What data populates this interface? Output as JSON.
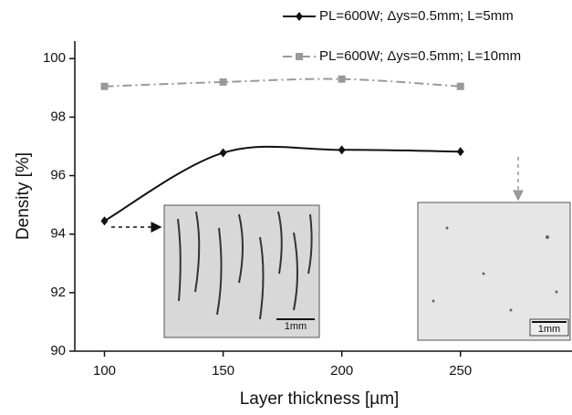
{
  "chart_data": {
    "type": "line",
    "x_label": "Layer thickness [µm]",
    "y_label": "Density [%]",
    "x": [
      100,
      150,
      200,
      250
    ],
    "series": [
      {
        "name": "PL=600W; Δys=0.5mm; L=5mm",
        "color": "#111111",
        "marker": "diamond",
        "dash": "solid",
        "values": [
          94.45,
          96.78,
          96.88,
          96.82
        ]
      },
      {
        "name": "PL=600W; Δys=0.5mm; L=10mm",
        "color": "#999999",
        "marker": "square",
        "dash": "dashdot",
        "values": [
          99.05,
          99.2,
          99.3,
          99.05
        ]
      }
    ],
    "xlim": [
      87.5,
      297
    ],
    "ylim": [
      90,
      100.6
    ],
    "xticks": [
      100,
      150,
      200,
      250
    ],
    "yticks": [
      90,
      92,
      94,
      96,
      98,
      100
    ],
    "legend": "upper right",
    "grid": false,
    "insets": [
      {
        "scale_label": "1mm"
      },
      {
        "scale_label": "1mm"
      }
    ]
  }
}
